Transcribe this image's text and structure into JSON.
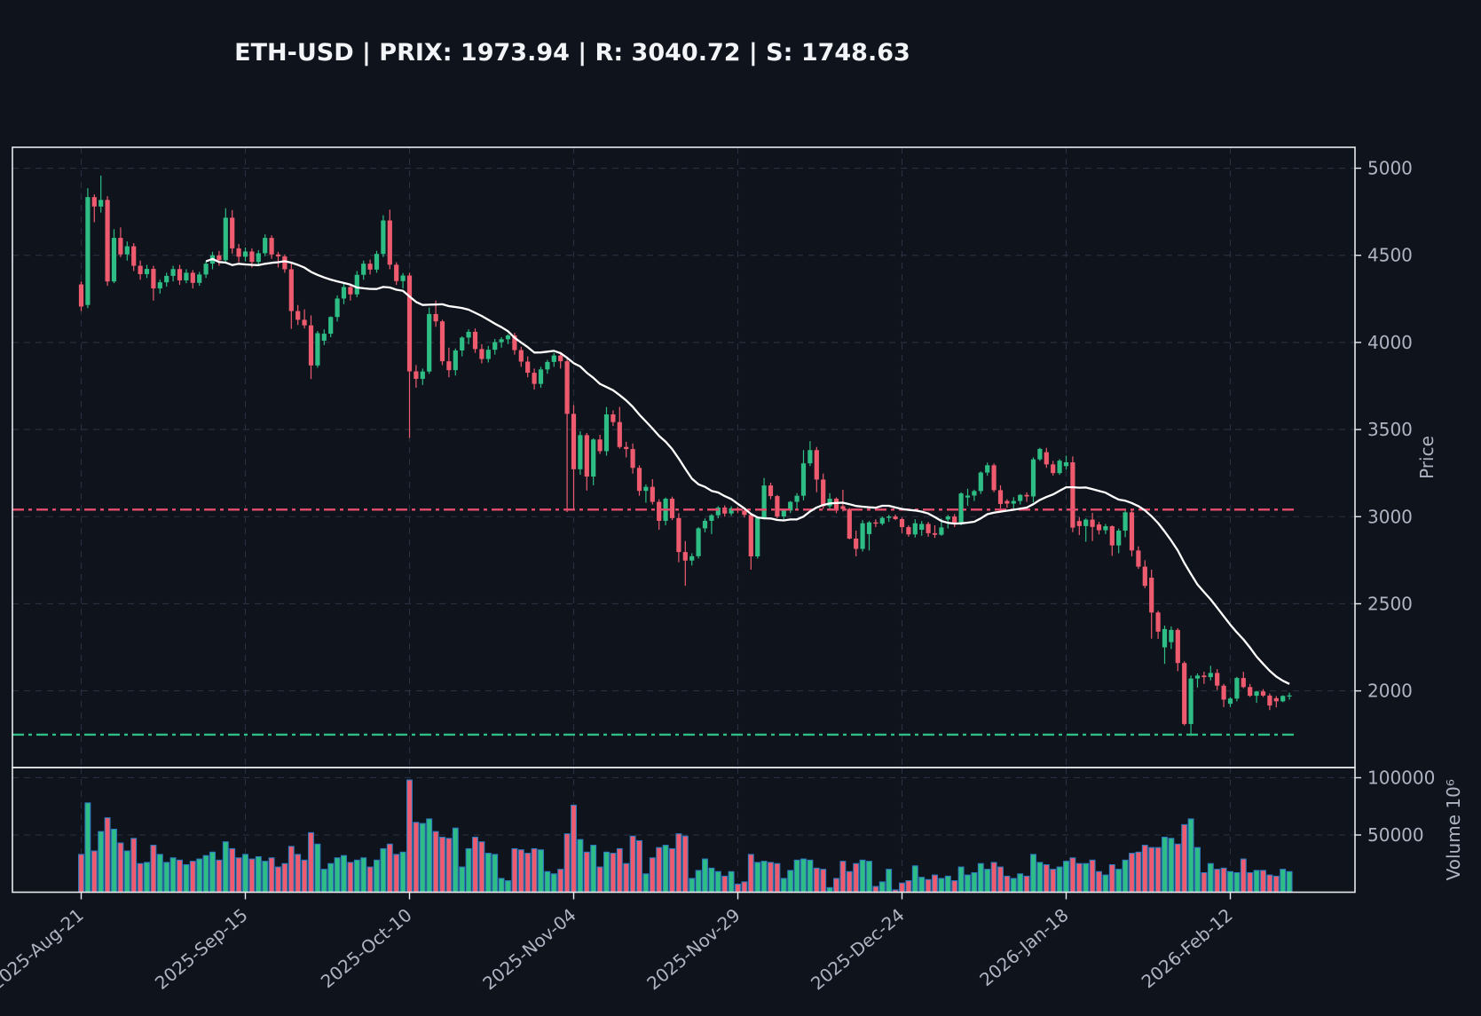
{
  "title": "ETH-USD | PRIX: 1973.94 | R: 3040.72 | S: 1748.63",
  "colors": {
    "background": "#0f131c",
    "grid": "#2a3040",
    "spine": "#e8eaed",
    "tick_text": "#aeb4c2",
    "up": "#2ebd85",
    "down": "#ee5b6f",
    "resistance_line": "#e84d6e",
    "support_line": "#2ebd85",
    "ma_line": "#ffffff",
    "volume_bar_edge": "#2d7dc2"
  },
  "chart_data": {
    "type": "candlestick",
    "title": "ETH-USD | PRIX: 1973.94 | R: 3040.72 | S: 1748.63",
    "last_price": 1973.94,
    "resistance": 3040.72,
    "support": 1748.63,
    "ma": {
      "type": "SMA",
      "window": 20
    },
    "price_axis": {
      "label": "Price",
      "ticks": [
        2000,
        2500,
        3000,
        3500,
        4000,
        4500,
        5000
      ],
      "range": [
        1560,
        5120
      ],
      "grid": true
    },
    "volume_axis": {
      "label": "Volume  10⁶",
      "ticks": [
        50000,
        100000
      ],
      "range": [
        0,
        108900
      ],
      "grid": true
    },
    "x_axis": {
      "start_date": "2025-08-21",
      "interval": "1d",
      "tick_labels": [
        "2025-Aug-21",
        "2025-Sep-15",
        "2025-Oct-10",
        "2025-Nov-04",
        "2025-Nov-29",
        "2025-Dec-24",
        "2026-Jan-18",
        "2026-Feb-12"
      ],
      "tick_indices": [
        0,
        25,
        50,
        75,
        100,
        125,
        150,
        175
      ]
    },
    "candles": {
      "open": [
        4333,
        4215,
        4834,
        4780,
        4818,
        4350,
        4600,
        4505,
        4552,
        4440,
        4392,
        4422,
        4310,
        4345,
        4382,
        4421,
        4356,
        4400,
        4342,
        4390,
        4452,
        4500,
        4472,
        4716,
        4540,
        4492,
        4522,
        4462,
        4512,
        4600,
        4505,
        4494,
        4420,
        4180,
        4130,
        4098,
        3868,
        4010,
        4050,
        4146,
        4252,
        4318,
        4276,
        4388,
        4452,
        4418,
        4508,
        4700,
        4446,
        4352,
        4384,
        3834,
        3791,
        3833,
        4163,
        4121,
        3892,
        3841,
        3954,
        4028,
        4061,
        3962,
        3905,
        3958,
        4002,
        4018,
        4040,
        3956,
        3890,
        3826,
        3762,
        3845,
        3888,
        3925,
        3892,
        3590,
        3272,
        3468,
        3230,
        3443,
        3376,
        3587,
        3543,
        3400,
        3388,
        3280,
        3148,
        3171,
        3085,
        2976,
        3103,
        2992,
        2797,
        2748,
        2773,
        2933,
        2976,
        3008,
        3052,
        3018,
        3048,
        3035,
        3010,
        2772,
        2993,
        3179,
        3118,
        3001,
        3035,
        3085,
        3120,
        3306,
        3382,
        3213,
        3060,
        3103,
        3060,
        3044,
        2874,
        2815,
        2900,
        2967,
        2960,
        2993,
        3001,
        2986,
        2940,
        2898,
        2925,
        2958,
        2905,
        2896,
        2984,
        3001,
        2962,
        3110,
        3121,
        3147,
        3253,
        3295,
        3152,
        3090,
        3075,
        3090,
        3125,
        3116,
        3329,
        3370,
        3300,
        3250,
        3290,
        3312,
        2975,
        2946,
        2983,
        2955,
        2922,
        2945,
        2835,
        2920,
        3025,
        2806,
        2713,
        2650,
        2450,
        2250,
        2280,
        2350,
        2160,
        1810,
        2071,
        2088,
        2079,
        2103,
        2030,
        1926,
        1956,
        2074,
        2022,
        1972,
        1997,
        1973,
        1958,
        1940,
        1971
      ],
      "high": [
        4350,
        4885,
        4850,
        4958,
        4840,
        4650,
        4660,
        4580,
        4570,
        4470,
        4445,
        4440,
        4360,
        4400,
        4440,
        4445,
        4420,
        4415,
        4405,
        4465,
        4520,
        4525,
        4770,
        4760,
        4565,
        4545,
        4540,
        4530,
        4620,
        4615,
        4520,
        4505,
        4452,
        4215,
        4190,
        4155,
        4065,
        4075,
        4150,
        4270,
        4345,
        4330,
        4410,
        4470,
        4475,
        4525,
        4730,
        4762,
        4460,
        4398,
        4400,
        3870,
        3850,
        4200,
        4240,
        4130,
        3970,
        3965,
        4035,
        4075,
        4080,
        3990,
        3980,
        4020,
        4030,
        4048,
        4055,
        3975,
        3920,
        3850,
        3860,
        3900,
        3940,
        3945,
        3910,
        3640,
        3490,
        3480,
        3450,
        3470,
        3629,
        3610,
        3630,
        3430,
        3420,
        3295,
        3185,
        3215,
        3100,
        3110,
        3115,
        3020,
        2860,
        2790,
        2940,
        2990,
        3015,
        3060,
        3065,
        3060,
        3056,
        3045,
        3020,
        3000,
        3222,
        3195,
        3125,
        3040,
        3090,
        3135,
        3382,
        3433,
        3400,
        3247,
        3135,
        3111,
        3154,
        3050,
        2920,
        2980,
        2975,
        2985,
        3000,
        3010,
        3012,
        2995,
        2950,
        2985,
        2975,
        2970,
        2950,
        2990,
        3010,
        3015,
        3140,
        3160,
        3155,
        3260,
        3310,
        3305,
        3180,
        3100,
        3112,
        3130,
        3140,
        3340,
        3395,
        3395,
        3320,
        3330,
        3350,
        3346,
        2997,
        2990,
        3022,
        2970,
        2958,
        2950,
        2932,
        3046,
        3040,
        2830,
        2750,
        2696,
        2460,
        2375,
        2370,
        2360,
        2170,
        2088,
        2100,
        2110,
        2144,
        2125,
        2040,
        1965,
        2080,
        2110,
        2040,
        2000,
        2010,
        1985,
        1970,
        1975,
        1990
      ],
      "low": [
        4180,
        4197,
        4690,
        4745,
        4325,
        4340,
        4490,
        4470,
        4410,
        4360,
        4370,
        4240,
        4280,
        4320,
        4350,
        4330,
        4340,
        4310,
        4325,
        4370,
        4420,
        4440,
        4460,
        4510,
        4460,
        4465,
        4430,
        4440,
        4495,
        4480,
        4430,
        4400,
        4078,
        4100,
        4080,
        3790,
        3855,
        3985,
        4030,
        4120,
        4220,
        4240,
        4260,
        4360,
        4390,
        4400,
        4490,
        4420,
        4330,
        4310,
        3452,
        3740,
        3756,
        3820,
        4090,
        3870,
        3800,
        3810,
        3920,
        3990,
        3940,
        3880,
        3885,
        3930,
        3970,
        3990,
        3930,
        3860,
        3800,
        3730,
        3740,
        3820,
        3860,
        3850,
        3027,
        3044,
        3240,
        3150,
        3180,
        3360,
        3350,
        3520,
        3390,
        3340,
        3247,
        3120,
        3080,
        3070,
        2925,
        2950,
        2980,
        2738,
        2603,
        2720,
        2760,
        2910,
        2900,
        2990,
        3000,
        3005,
        3020,
        2995,
        2696,
        2760,
        2985,
        3100,
        2990,
        2985,
        3020,
        3040,
        3094,
        3290,
        3140,
        3044,
        3040,
        3020,
        3030,
        2870,
        2772,
        2800,
        2806,
        2940,
        2950,
        2970,
        2980,
        2905,
        2885,
        2880,
        2890,
        2885,
        2878,
        2890,
        2932,
        2940,
        2950,
        3062,
        3090,
        3130,
        3235,
        3140,
        3048,
        3050,
        3042,
        3070,
        3085,
        3082,
        3320,
        3280,
        3236,
        3240,
        3270,
        2911,
        2894,
        2856,
        2860,
        2898,
        2900,
        2775,
        2790,
        2882,
        2772,
        2700,
        2590,
        2300,
        2299,
        2155,
        2240,
        2113,
        1801,
        1742,
        2020,
        2040,
        2060,
        2005,
        1907,
        1907,
        1940,
        2015,
        1965,
        1931,
        1965,
        1890,
        1905,
        1935,
        1950
      ],
      "close": [
        4206,
        4834,
        4780,
        4818,
        4350,
        4600,
        4505,
        4552,
        4440,
        4392,
        4422,
        4310,
        4345,
        4382,
        4421,
        4356,
        4400,
        4342,
        4390,
        4452,
        4500,
        4472,
        4716,
        4540,
        4492,
        4522,
        4462,
        4512,
        4600,
        4505,
        4494,
        4420,
        4180,
        4130,
        4098,
        3868,
        4053,
        4050,
        4146,
        4252,
        4318,
        4276,
        4388,
        4452,
        4418,
        4508,
        4700,
        4446,
        4352,
        4384,
        3834,
        3791,
        3833,
        4163,
        4121,
        3892,
        3841,
        3954,
        4028,
        4061,
        3962,
        3905,
        3958,
        4002,
        4018,
        4040,
        3956,
        3890,
        3826,
        3762,
        3845,
        3888,
        3925,
        3892,
        3590,
        3272,
        3468,
        3230,
        3443,
        3376,
        3587,
        3543,
        3400,
        3388,
        3280,
        3148,
        3171,
        3085,
        2976,
        3103,
        2992,
        2797,
        2748,
        2773,
        2933,
        2976,
        3008,
        3052,
        3018,
        3048,
        3035,
        3010,
        2772,
        2993,
        3179,
        3118,
        3001,
        3035,
        3085,
        3120,
        3306,
        3382,
        3213,
        3060,
        3103,
        3035,
        3044,
        2874,
        2815,
        2962,
        2967,
        2960,
        2993,
        3001,
        2986,
        2940,
        2898,
        2962,
        2958,
        2905,
        2896,
        2938,
        3001,
        2962,
        3133,
        3121,
        3147,
        3253,
        3295,
        3152,
        3073,
        3075,
        3090,
        3125,
        3116,
        3329,
        3389,
        3300,
        3250,
        3321,
        3312,
        2937,
        2946,
        2983,
        2941,
        2922,
        2945,
        2835,
        2920,
        3025,
        2806,
        2713,
        2603,
        2450,
        2340,
        2355,
        2350,
        2160,
        1810,
        2071,
        2088,
        2079,
        2103,
        2030,
        1950,
        1956,
        2074,
        2022,
        1972,
        1997,
        1973,
        1916,
        1940,
        1971,
        1973.94
      ],
      "volume": [
        33000,
        78000,
        36000,
        53000,
        65000,
        55000,
        43000,
        36000,
        47000,
        25000,
        26000,
        41000,
        33000,
        26000,
        30000,
        28000,
        24000,
        27000,
        29000,
        32000,
        35000,
        28000,
        44000,
        38000,
        30000,
        33000,
        29000,
        31000,
        27000,
        30000,
        22000,
        25000,
        40000,
        33000,
        28000,
        52000,
        42000,
        20000,
        25000,
        30000,
        32000,
        26000,
        28000,
        30000,
        22000,
        28000,
        38000,
        42000,
        33000,
        35000,
        98000,
        61000,
        60000,
        64000,
        53000,
        48000,
        47000,
        56000,
        22000,
        38000,
        48000,
        44000,
        34000,
        33000,
        12000,
        10000,
        38000,
        37000,
        34000,
        38000,
        37000,
        18000,
        16000,
        20000,
        51000,
        76000,
        46000,
        35000,
        41000,
        22000,
        35000,
        34000,
        38000,
        25000,
        49000,
        45000,
        16000,
        30000,
        39000,
        41000,
        38000,
        51000,
        49000,
        12000,
        19000,
        29000,
        21000,
        18000,
        14000,
        18000,
        7000,
        9000,
        33000,
        26000,
        27000,
        26000,
        25000,
        12000,
        19000,
        28000,
        29000,
        28000,
        21000,
        20000,
        4000,
        12000,
        27000,
        18000,
        25000,
        28000,
        27000,
        5000,
        9000,
        20000,
        2000,
        8000,
        10000,
        23000,
        13000,
        11000,
        15000,
        12000,
        14000,
        10000,
        22000,
        15000,
        17000,
        25000,
        20000,
        26000,
        22000,
        14000,
        12000,
        16000,
        14000,
        33000,
        26000,
        24000,
        20000,
        22000,
        27000,
        30000,
        25000,
        25000,
        28000,
        18000,
        15000,
        24000,
        20000,
        28000,
        34000,
        35000,
        41000,
        39000,
        39000,
        48000,
        47000,
        42000,
        59000,
        64000,
        39000,
        17000,
        25000,
        20000,
        21000,
        18000,
        17000,
        29000,
        17000,
        19000,
        19000,
        15000,
        14000,
        20000,
        18000
      ]
    }
  }
}
